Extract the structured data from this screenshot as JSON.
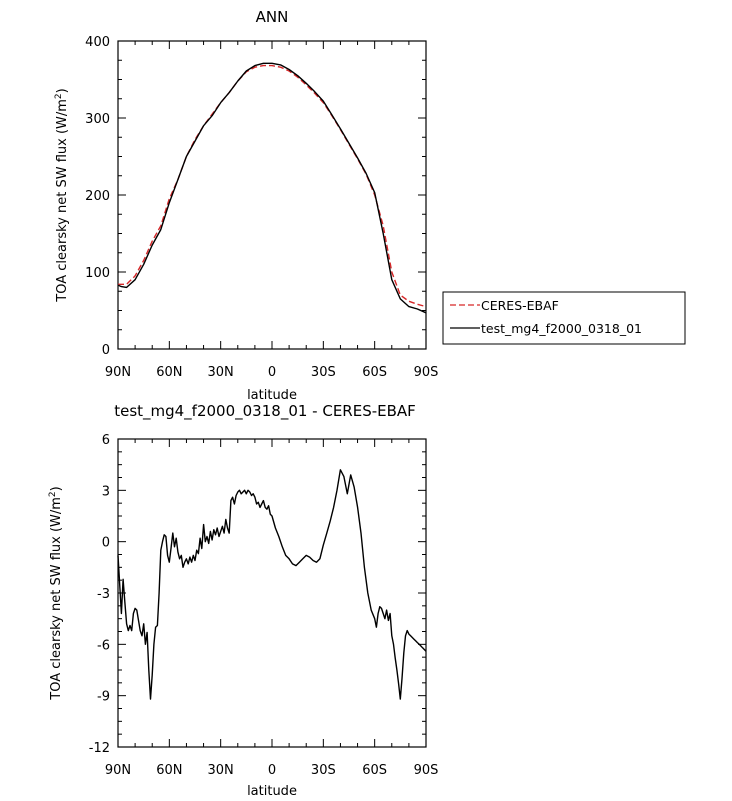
{
  "chart_data": [
    {
      "type": "line",
      "title": "ANN",
      "xlabel": "latitude",
      "ylabel": "TOA clearsky net SW flux (W/m²)",
      "ylabel_base": "TOA clearsky net SW flux (W/m",
      "ylabel_sup": "2",
      "ylabel_end": ")",
      "xlim": [
        90,
        -90
      ],
      "ylim": [
        0,
        400
      ],
      "xticks": [
        90,
        60,
        30,
        0,
        -30,
        -60,
        -90
      ],
      "xtick_labels": [
        "90N",
        "60N",
        "30N",
        "0",
        "30S",
        "60S",
        "90S"
      ],
      "yticks": [
        0,
        100,
        200,
        300,
        400
      ],
      "ytick_labels": [
        "0",
        "100",
        "200",
        "300",
        "400"
      ],
      "legend_position": "right",
      "series": [
        {
          "name": "CERES-EBAF",
          "color": "#d62728",
          "style": "dashed",
          "x": [
            90,
            85,
            80,
            75,
            70,
            65,
            60,
            55,
            50,
            45,
            40,
            35,
            30,
            25,
            20,
            15,
            10,
            5,
            0,
            -5,
            -10,
            -15,
            -20,
            -25,
            -30,
            -35,
            -40,
            -45,
            -50,
            -55,
            -60,
            -65,
            -70,
            -75,
            -80,
            -85,
            -90
          ],
          "values": [
            84,
            84,
            95,
            115,
            140,
            160,
            195,
            220,
            250,
            272,
            290,
            305,
            320,
            333,
            348,
            360,
            366,
            368,
            368,
            366,
            361,
            353,
            343,
            332,
            320,
            303,
            285,
            266,
            247,
            227,
            200,
            160,
            100,
            70,
            62,
            58,
            55
          ]
        },
        {
          "name": "test_mg4_f2000_0318_01",
          "color": "#000000",
          "style": "solid",
          "x": [
            90,
            88,
            85,
            80,
            75,
            70,
            65,
            60,
            55,
            50,
            45,
            40,
            35,
            30,
            25,
            20,
            15,
            10,
            5,
            0,
            -5,
            -10,
            -15,
            -20,
            -25,
            -30,
            -35,
            -40,
            -45,
            -50,
            -55,
            -60,
            -65,
            -70,
            -75,
            -80,
            -85,
            -90
          ],
          "values": [
            83,
            81,
            80,
            90,
            110,
            135,
            155,
            190,
            220,
            250,
            270,
            290,
            303,
            320,
            333,
            348,
            361,
            368,
            371,
            371,
            369,
            363,
            355,
            345,
            334,
            322,
            304,
            286,
            267,
            248,
            228,
            203,
            150,
            90,
            65,
            55,
            52,
            47
          ]
        }
      ]
    },
    {
      "type": "line",
      "title": "test_mg4_f2000_0318_01 - CERES-EBAF",
      "xlabel": "latitude",
      "ylabel": "TOA clearsky net SW flux (W/m²)",
      "ylabel_base": "TOA clearsky net SW flux (W/m",
      "ylabel_sup": "2",
      "ylabel_end": ")",
      "xlim": [
        90,
        -90
      ],
      "ylim": [
        -12,
        6
      ],
      "xticks": [
        90,
        60,
        30,
        0,
        -30,
        -60,
        -90
      ],
      "xtick_labels": [
        "90N",
        "60N",
        "30N",
        "0",
        "30S",
        "60S",
        "90S"
      ],
      "yticks": [
        -12,
        -9,
        -6,
        -3,
        0,
        3,
        6
      ],
      "ytick_labels": [
        "-12",
        "-9",
        "-6",
        "-3",
        "0",
        "3",
        "6"
      ],
      "series": [
        {
          "name": "",
          "color": "#000000",
          "style": "solid",
          "x": [
            90,
            89,
            88,
            87,
            86,
            85,
            84,
            83,
            82,
            81,
            80,
            79,
            78,
            77,
            76,
            75,
            74,
            73,
            72,
            71,
            70,
            69,
            68,
            67,
            66,
            65,
            64,
            63,
            62,
            61,
            60,
            59,
            58,
            57,
            56,
            55,
            54,
            53,
            52,
            51,
            50,
            49,
            48,
            47,
            46,
            45,
            44,
            43,
            42,
            41,
            40,
            39,
            38,
            37,
            36,
            35,
            34,
            33,
            32,
            31,
            30,
            29,
            28,
            27,
            26,
            25,
            24,
            23,
            22,
            21,
            20,
            19,
            18,
            17,
            16,
            15,
            14,
            13,
            12,
            11,
            10,
            9,
            8,
            7,
            6,
            5,
            4,
            3,
            2,
            1,
            0,
            -2,
            -4,
            -6,
            -8,
            -10,
            -12,
            -14,
            -16,
            -18,
            -20,
            -22,
            -24,
            -26,
            -28,
            -30,
            -32,
            -34,
            -36,
            -38,
            -40,
            -42,
            -44,
            -46,
            -48,
            -50,
            -52,
            -54,
            -56,
            -58,
            -60,
            -61,
            -62,
            -63,
            -64,
            -65,
            -66,
            -67,
            -68,
            -69,
            -70,
            -71,
            -72,
            -73,
            -74,
            -75,
            -76,
            -77,
            -78,
            -79,
            -80,
            -81,
            -82,
            -83,
            -84,
            -85,
            -86,
            -87,
            -88,
            -89,
            -90
          ],
          "values": [
            -0.8,
            -2.5,
            -4.2,
            -2.2,
            -3.5,
            -4.8,
            -5.2,
            -4.9,
            -5.2,
            -4.2,
            -3.9,
            -4.0,
            -4.6,
            -5.2,
            -5.5,
            -4.8,
            -6.0,
            -5.3,
            -7.5,
            -9.2,
            -7.8,
            -6.0,
            -5.0,
            -4.9,
            -3.0,
            -0.5,
            0.0,
            0.4,
            0.3,
            -0.8,
            -1.2,
            -0.4,
            0.5,
            -0.3,
            0.2,
            -0.6,
            -1.0,
            -0.8,
            -1.5,
            -1.2,
            -1.0,
            -1.3,
            -0.9,
            -1.2,
            -0.8,
            -1.1,
            -0.5,
            -0.7,
            0.2,
            -0.4,
            1.0,
            0.0,
            0.3,
            -0.1,
            0.6,
            0.1,
            0.7,
            0.4,
            0.8,
            0.3,
            0.6,
            0.9,
            0.5,
            1.3,
            0.8,
            0.5,
            2.4,
            2.6,
            2.2,
            2.7,
            2.9,
            3.0,
            2.8,
            2.9,
            3.0,
            2.8,
            3.0,
            2.9,
            2.7,
            2.8,
            2.6,
            2.2,
            2.3,
            2.0,
            2.2,
            2.4,
            2.0,
            1.9,
            2.1,
            1.6,
            1.5,
            0.8,
            0.3,
            -0.3,
            -0.8,
            -1.0,
            -1.3,
            -1.4,
            -1.2,
            -1.0,
            -0.8,
            -0.9,
            -1.1,
            -1.2,
            -1.0,
            -0.2,
            0.5,
            1.2,
            2.0,
            3.0,
            4.2,
            3.8,
            2.8,
            3.9,
            3.2,
            2.0,
            0.5,
            -1.5,
            -3.0,
            -4.0,
            -4.5,
            -5.0,
            -4.2,
            -3.8,
            -3.9,
            -4.2,
            -4.5,
            -4.0,
            -4.6,
            -4.2,
            -5.5,
            -6.0,
            -6.8,
            -7.5,
            -8.3,
            -9.2,
            -8.0,
            -6.5,
            -5.5,
            -5.2,
            -5.4,
            -5.5,
            -5.6,
            -5.7,
            -5.8,
            -5.9,
            -6.0,
            -6.1,
            -6.2,
            -6.3,
            -6.4
          ]
        }
      ]
    }
  ]
}
